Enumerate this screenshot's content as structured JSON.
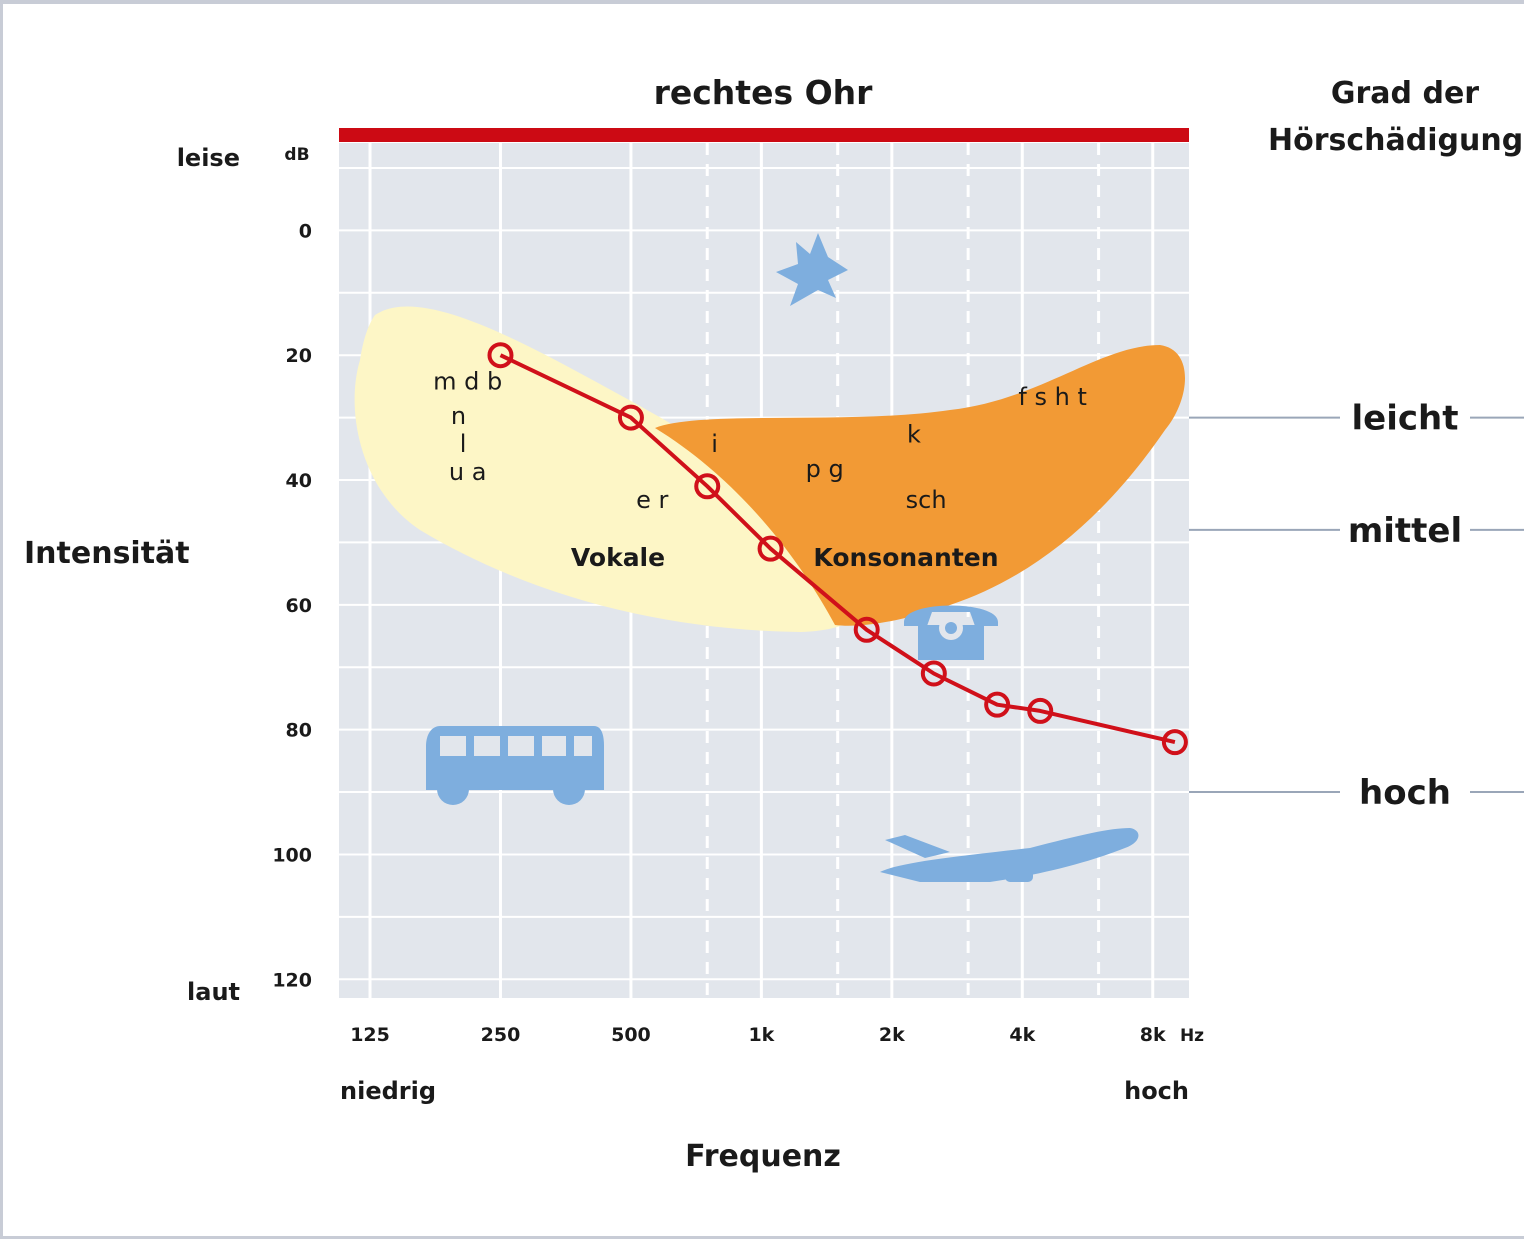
{
  "chart_data": {
    "type": "line",
    "title": "rechtes Ohr",
    "xlabel": "Frequenz",
    "ylabel": "Intensität",
    "y_unit": "dB",
    "x_unit": "Hz",
    "x_scale": "log2",
    "x_ticks": [
      125,
      250,
      500,
      1000,
      2000,
      4000,
      8000
    ],
    "x_tick_labels": [
      "125",
      "250",
      "500",
      "1k",
      "2k",
      "4k",
      "8k"
    ],
    "y_ticks": [
      0,
      20,
      40,
      60,
      80,
      100,
      120
    ],
    "y_tick_labels": [
      "0",
      "20",
      "40",
      "60",
      "80",
      "100",
      "120"
    ],
    "ylim": [
      -14,
      123
    ],
    "y_inverted": true,
    "x_end_labels": {
      "low": "niedrig",
      "high": "hoch"
    },
    "y_end_labels": {
      "top": "leise",
      "bottom": "laut"
    },
    "grid": true,
    "series": [
      {
        "color": "#d0101a",
        "x": [
          250,
          500,
          750,
          1050,
          1750,
          2500,
          3500,
          4400,
          9000
        ],
        "y": [
          20,
          30,
          41,
          51,
          64,
          71,
          76,
          77,
          82
        ]
      }
    ],
    "annotations": {
      "vowel_region_label": "Vokale",
      "consonant_region_label": "Konsonanten",
      "phonemes": [
        {
          "text": "m d b",
          "x": 210,
          "y": 25.5
        },
        {
          "text": "n",
          "x": 200,
          "y": 31
        },
        {
          "text": "l",
          "x": 205,
          "y": 35.5
        },
        {
          "text": "u a",
          "x": 210,
          "y": 40
        },
        {
          "text": "e r",
          "x": 560,
          "y": 44.5
        },
        {
          "text": "i",
          "x": 780,
          "y": 35.5
        },
        {
          "text": "p g",
          "x": 1400,
          "y": 39.5
        },
        {
          "text": "k",
          "x": 2250,
          "y": 34
        },
        {
          "text": "f s h t",
          "x": 4700,
          "y": 28
        },
        {
          "text": "sch",
          "x": 2400,
          "y": 44.5
        }
      ],
      "hearing_loss_heading": [
        "Grad der",
        "Hörschädigung"
      ],
      "hearing_loss_levels": [
        {
          "label": "leicht",
          "y": 30
        },
        {
          "label": "mittel",
          "y": 48
        },
        {
          "label": "hoch",
          "y": 90
        }
      ],
      "icons": [
        {
          "name": "leaf-icon",
          "x": 1350,
          "y": 5,
          "color": "#7eaede"
        },
        {
          "name": "telephone-icon",
          "x": 2700,
          "y": 64,
          "color": "#7eaede"
        },
        {
          "name": "bus-icon",
          "x": 250,
          "y": 86,
          "color": "#7eaede"
        },
        {
          "name": "airplane-icon",
          "x": 3000,
          "y": 100,
          "color": "#7eaede"
        }
      ]
    }
  }
}
